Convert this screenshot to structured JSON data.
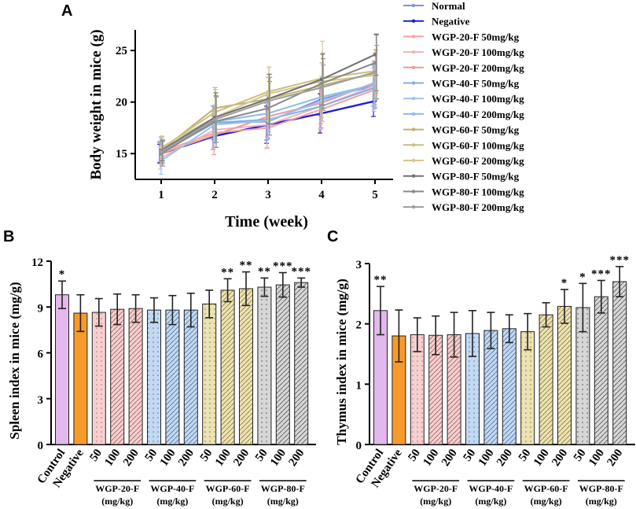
{
  "chart_data": [
    {
      "panel": "A",
      "type": "line",
      "ylabel": "Body weight in mice (g)",
      "xlabel": "Time (week)",
      "x": [
        1,
        2,
        3,
        4,
        5
      ],
      "xticks": [
        "1",
        "2",
        "3",
        "4",
        "5"
      ],
      "yticks": [
        "15",
        "20",
        "25"
      ],
      "ylim": [
        12.5,
        27
      ],
      "series": [
        {
          "name": "Normal",
          "color": "#7f8fe8",
          "values": [
            15.1,
            18.0,
            18.1,
            20.3,
            21.6
          ],
          "err": [
            1.0,
            1.6,
            1.8,
            1.6,
            2.0
          ]
        },
        {
          "name": "Negative",
          "color": "#1f1fd6",
          "values": [
            15.0,
            16.7,
            17.8,
            18.9,
            20.1
          ],
          "err": [
            0.9,
            1.3,
            1.8,
            1.9,
            1.5
          ]
        },
        {
          "name": "WGP-20-F 50mg/kg",
          "color": "#f4a1a1",
          "values": [
            15.2,
            17.0,
            17.5,
            19.3,
            21.2
          ],
          "err": [
            1.0,
            1.6,
            2.0,
            2.0,
            2.1
          ]
        },
        {
          "name": "WGP-20-F 100mg/kg",
          "color": "#f0b4b4",
          "values": [
            14.6,
            17.3,
            17.8,
            19.6,
            21.6
          ],
          "err": [
            1.1,
            1.7,
            2.2,
            2.2,
            2.3
          ]
        },
        {
          "name": "WGP-20-F 200mg/kg",
          "color": "#ec9a9a",
          "values": [
            15.0,
            16.8,
            18.6,
            19.9,
            21.9
          ],
          "err": [
            1.0,
            1.9,
            2.0,
            2.0,
            2.1
          ]
        },
        {
          "name": "WGP-40-F 50mg/kg",
          "color": "#7fb0e8",
          "values": [
            15.4,
            18.0,
            18.3,
            19.6,
            21.4
          ],
          "err": [
            1.2,
            1.7,
            1.9,
            2.1,
            2.0
          ]
        },
        {
          "name": "WGP-40-F 100mg/kg",
          "color": "#9cc3ee",
          "values": [
            14.3,
            17.8,
            18.2,
            20.1,
            21.8
          ],
          "err": [
            1.3,
            1.8,
            1.7,
            1.9,
            2.1
          ]
        },
        {
          "name": "WGP-40-F 200mg/kg",
          "color": "#8dbbe9",
          "values": [
            15.1,
            18.1,
            18.9,
            20.5,
            21.7
          ],
          "err": [
            1.1,
            1.6,
            1.8,
            2.0,
            2.2
          ]
        },
        {
          "name": "WGP-60-F 50mg/kg",
          "color": "#bfb36a",
          "values": [
            15.3,
            19.4,
            20.3,
            21.6,
            22.8
          ],
          "err": [
            1.1,
            2.0,
            2.1,
            2.2,
            2.0
          ]
        },
        {
          "name": "WGP-60-F 100mg/kg",
          "color": "#c9bf80",
          "values": [
            15.5,
            19.0,
            21.0,
            22.3,
            23.0
          ],
          "err": [
            1.2,
            2.2,
            2.4,
            2.3,
            2.1
          ]
        },
        {
          "name": "WGP-60-F 200mg/kg",
          "color": "#d4c88c",
          "values": [
            15.6,
            18.5,
            20.8,
            22.0,
            22.6
          ],
          "err": [
            1.0,
            2.1,
            2.6,
            3.9,
            2.4
          ]
        },
        {
          "name": "WGP-80-F 50mg/kg",
          "color": "#707070",
          "values": [
            15.3,
            18.5,
            20.3,
            22.2,
            24.6
          ],
          "err": [
            1.0,
            2.4,
            2.4,
            2.5,
            2.0
          ]
        },
        {
          "name": "WGP-80-F 100mg/kg",
          "color": "#8a8a8a",
          "values": [
            15.0,
            18.1,
            19.4,
            21.8,
            23.8
          ],
          "err": [
            1.2,
            2.5,
            2.6,
            2.4,
            2.7
          ]
        },
        {
          "name": "WGP-80-F 200mg/kg",
          "color": "#9d9d9d",
          "values": [
            15.2,
            18.3,
            20.1,
            21.4,
            22.9
          ],
          "err": [
            1.1,
            2.2,
            2.3,
            2.2,
            2.6
          ]
        }
      ]
    },
    {
      "panel": "B",
      "type": "bar",
      "ylabel": "Spleen index in mice (mg/g)",
      "yticks": [
        "0",
        "3",
        "6",
        "9",
        "12"
      ],
      "ylim": [
        0,
        12
      ],
      "categories": [
        "Control",
        "Negative",
        "50",
        "100",
        "200",
        "50",
        "100",
        "200",
        "50",
        "100",
        "200",
        "50",
        "100",
        "200"
      ],
      "values": [
        9.8,
        8.6,
        8.65,
        8.85,
        8.9,
        8.8,
        8.8,
        8.8,
        9.2,
        10.1,
        10.2,
        10.3,
        10.45,
        10.6
      ],
      "err": [
        0.9,
        1.2,
        0.9,
        1.0,
        0.9,
        0.8,
        0.95,
        1.1,
        0.9,
        0.75,
        1.1,
        0.6,
        0.8,
        0.3
      ],
      "stars": [
        "*",
        "",
        "",
        "",
        "",
        "",
        "",
        "",
        "",
        "**",
        "**",
        "**",
        "***",
        "***"
      ],
      "groups": [
        {
          "line1": "WGP-20-F",
          "line2": "(mg/kg)"
        },
        {
          "line1": "WGP-40-F",
          "line2": "(mg/kg)"
        },
        {
          "line1": "WGP-60-F",
          "line2": "(mg/kg)"
        },
        {
          "line1": "WGP-80-F",
          "line2": "(mg/kg)"
        }
      ]
    },
    {
      "panel": "C",
      "type": "bar",
      "ylabel": "Thymus index in mice (mg/g)",
      "yticks": [
        "0",
        "1",
        "2",
        "3"
      ],
      "ylim": [
        0,
        3
      ],
      "categories": [
        "Control",
        "Negative",
        "50",
        "100",
        "200",
        "50",
        "100",
        "200",
        "50",
        "100",
        "200",
        "50",
        "100",
        "200"
      ],
      "values": [
        2.22,
        1.8,
        1.82,
        1.81,
        1.82,
        1.84,
        1.89,
        1.92,
        1.87,
        2.15,
        2.29,
        2.27,
        2.45,
        2.7
      ],
      "err": [
        0.4,
        0.43,
        0.28,
        0.32,
        0.37,
        0.38,
        0.3,
        0.23,
        0.3,
        0.2,
        0.28,
        0.4,
        0.27,
        0.25
      ],
      "stars": [
        "**",
        "",
        "",
        "",
        "",
        "",
        "",
        "",
        "",
        "",
        "*",
        "*",
        "***",
        "***"
      ],
      "groups": [
        {
          "line1": "WGP-20-F",
          "line2": "(mg/kg)"
        },
        {
          "line1": "WGP-40-F",
          "line2": "(mg/kg)"
        },
        {
          "line1": "WGP-60-F",
          "line2": "(mg/kg)"
        },
        {
          "line1": "WGP-80-F",
          "line2": "(mg/kg)"
        }
      ]
    }
  ],
  "panels": {
    "a": "A",
    "b": "B",
    "c": "C"
  },
  "bar_colors": [
    "#e3b8ec",
    "#f79a2b",
    "#f6cfcf",
    "#f6cfcf",
    "#f6cfcf",
    "#c3d8f1",
    "#c3d8f1",
    "#c3d8f1",
    "#ece2b3",
    "#ece2b3",
    "#ece2b3",
    "#d6d6d6",
    "#d6d6d6",
    "#d6d6d6"
  ],
  "bar_patterns": [
    "solid",
    "solid",
    "dots",
    "diag",
    "diag",
    "dots",
    "diag",
    "diag",
    "dots",
    "diag",
    "diag",
    "dots",
    "diag",
    "diag"
  ]
}
